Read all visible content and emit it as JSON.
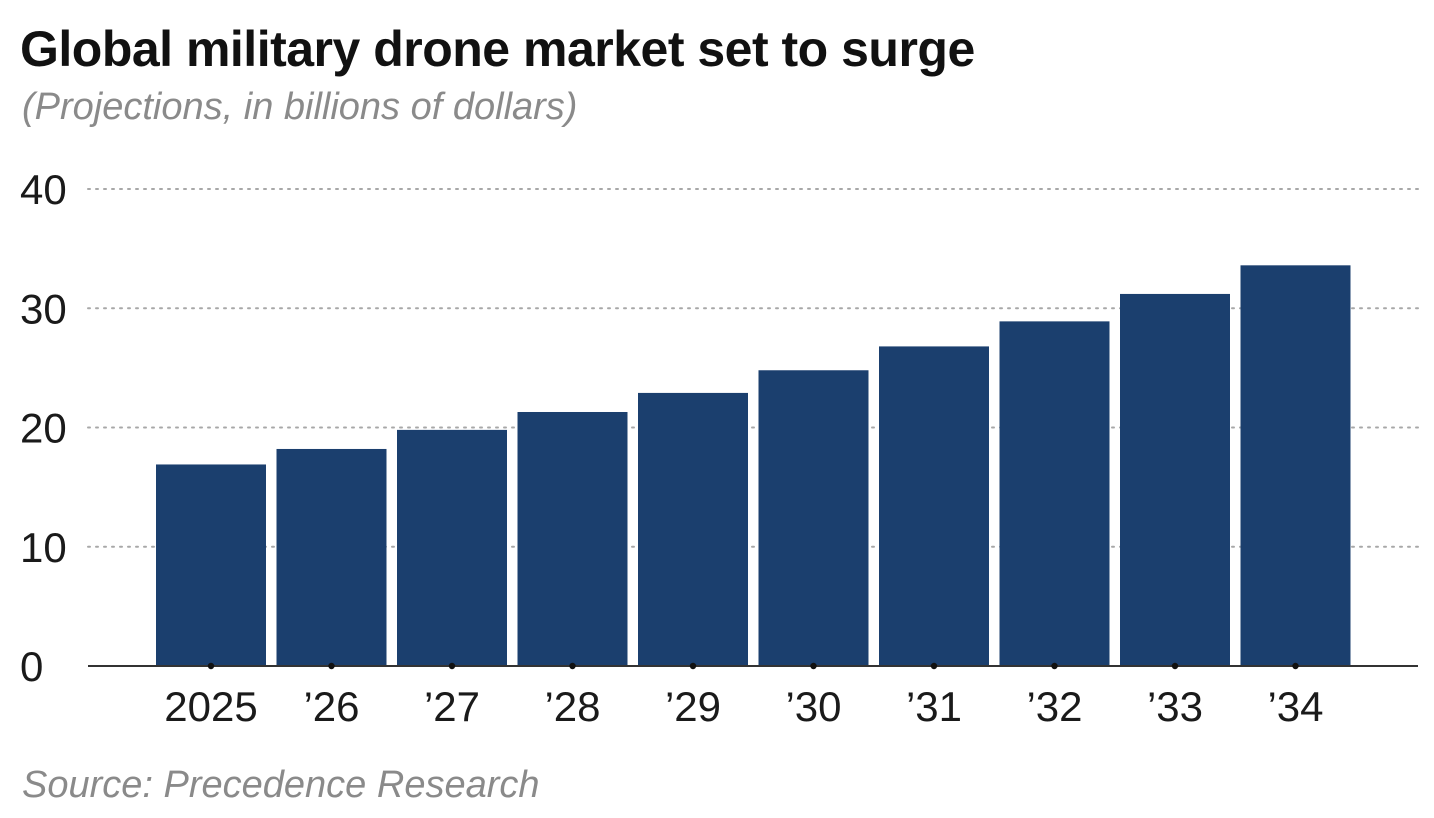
{
  "title": "Global military drone market set to surge",
  "subtitle": "(Projections, in billions of dollars)",
  "source": "Source: Precedence Research",
  "colors": {
    "bar": "#1b3f6e",
    "axis": "#333333",
    "grid": "#a8a8a8",
    "text": "#1a1a1a",
    "muted": "#8a8a8a"
  },
  "chart_data": {
    "type": "bar",
    "title": "Global military drone market set to surge",
    "subtitle": "(Projections, in billions of dollars)",
    "categories": [
      "2025",
      "’26",
      "’27",
      "’28",
      "’29",
      "’30",
      "’31",
      "’32",
      "’33",
      "’34"
    ],
    "values": [
      16.9,
      18.2,
      19.8,
      21.3,
      22.9,
      24.8,
      26.8,
      28.9,
      31.2,
      33.6
    ],
    "yticks": [
      0,
      10,
      20,
      30,
      40
    ],
    "ylim": [
      0,
      40
    ],
    "xlabel": "",
    "ylabel": "",
    "grid": "horizontal dotted",
    "legend": "none"
  }
}
